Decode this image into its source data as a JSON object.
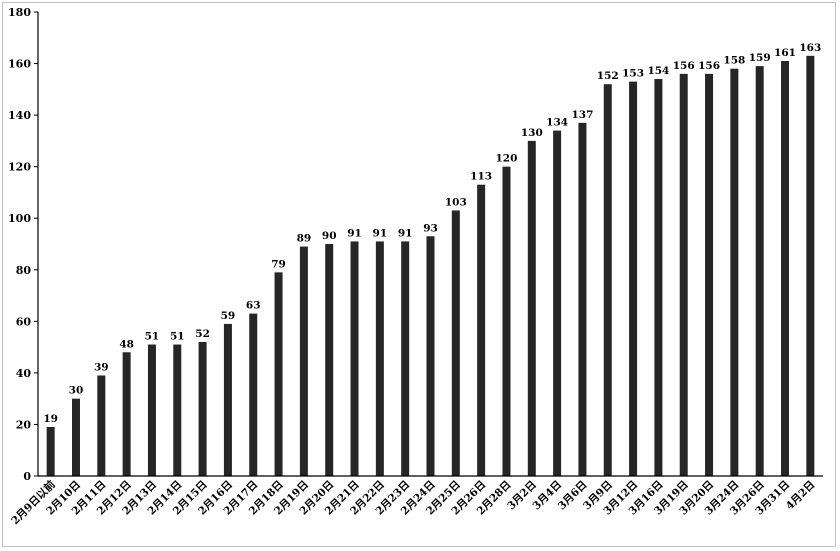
{
  "chart_data": {
    "type": "bar",
    "title": "",
    "xlabel": "",
    "ylabel": "",
    "ylim": [
      0,
      180
    ],
    "yticks": [
      0,
      20,
      40,
      60,
      80,
      100,
      120,
      140,
      160,
      180
    ],
    "grid": false,
    "bar_color": "#262626",
    "categories": [
      "2月9日以前",
      "2月10日",
      "2月11日",
      "2月12日",
      "2月13日",
      "2月14日",
      "2月15日",
      "2月16日",
      "2月17日",
      "2月18日",
      "2月19日",
      "2月20日",
      "2月21日",
      "2月22日",
      "2月23日",
      "2月24日",
      "2月25日",
      "2月26日",
      "2月28日",
      "3月2日",
      "3月4日",
      "3月6日",
      "3月9日",
      "3月12日",
      "3月16日",
      "3月19日",
      "3月20日",
      "3月24日",
      "3月26日",
      "3月31日",
      "4月2日"
    ],
    "values": [
      19,
      30,
      39,
      48,
      51,
      51,
      52,
      59,
      63,
      79,
      89,
      90,
      91,
      91,
      91,
      93,
      103,
      113,
      120,
      130,
      134,
      137,
      152,
      153,
      154,
      156,
      156,
      158,
      159,
      161,
      163
    ]
  }
}
